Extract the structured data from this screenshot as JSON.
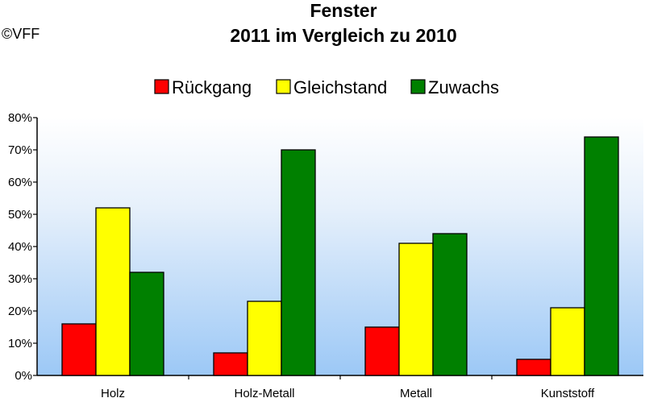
{
  "header": {
    "copyright": "©VFF"
  },
  "chart_data": {
    "type": "bar",
    "title": "Fenster",
    "subtitle": "2011 im Vergleich zu 2010",
    "categories": [
      "Holz",
      "Holz-Metall",
      "Metall",
      "Kunststoff"
    ],
    "series": [
      {
        "name": "Rückgang",
        "color": "#ff0000",
        "values": [
          16,
          7,
          15,
          5
        ]
      },
      {
        "name": "Gleichstand",
        "color": "#ffff00",
        "values": [
          52,
          23,
          41,
          21
        ]
      },
      {
        "name": "Zuwachs",
        "color": "#008000",
        "values": [
          32,
          70,
          44,
          74
        ]
      }
    ],
    "ylim": [
      0,
      80
    ],
    "yticks": [
      "0%",
      "10%",
      "20%",
      "30%",
      "40%",
      "50%",
      "60%",
      "70%",
      "80%"
    ],
    "legend_position": "top",
    "plot_background": "gradient light-blue to white",
    "grid": false
  }
}
